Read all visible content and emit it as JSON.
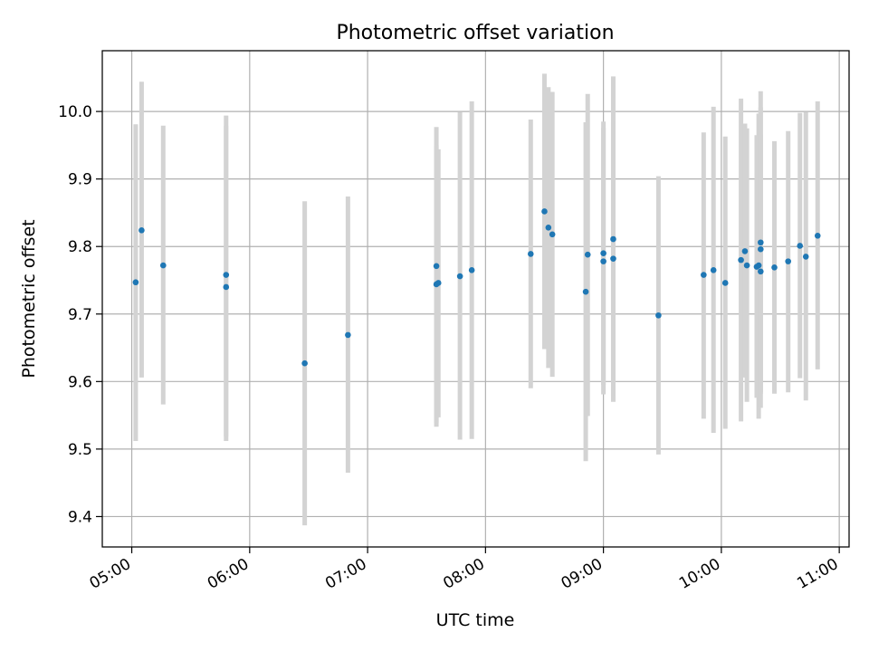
{
  "chart_data": {
    "type": "scatter",
    "title": "Photometric offset variation",
    "xlabel": "UTC time",
    "ylabel": "Photometric offset",
    "x_is_time": true,
    "xlim": [
      "04:45",
      "11:05"
    ],
    "ylim": [
      9.355,
      10.09
    ],
    "x_ticks": [
      "05:00",
      "06:00",
      "07:00",
      "08:00",
      "09:00",
      "10:00",
      "11:00"
    ],
    "y_ticks": [
      "9.4",
      "9.5",
      "9.6",
      "9.7",
      "9.8",
      "9.9",
      "10.0"
    ],
    "grid": true,
    "colors": {
      "point": "#1f77b4",
      "errorbar": "#d3d3d3",
      "grid": "#b0b0b0"
    },
    "points": [
      {
        "t": "05:02",
        "y": 9.747,
        "lo": 9.512,
        "hi": 9.981
      },
      {
        "t": "05:05",
        "y": 9.824,
        "lo": 9.606,
        "hi": 10.044
      },
      {
        "t": "05:16",
        "y": 9.772,
        "lo": 9.566,
        "hi": 9.979
      },
      {
        "t": "05:48",
        "y": 9.758,
        "lo": 9.519,
        "hi": 9.994
      },
      {
        "t": "05:48",
        "y": 9.74,
        "lo": 9.512,
        "hi": 9.979
      },
      {
        "t": "06:28",
        "y": 9.627,
        "lo": 9.387,
        "hi": 9.867
      },
      {
        "t": "06:50",
        "y": 9.669,
        "lo": 9.465,
        "hi": 9.874
      },
      {
        "t": "07:35",
        "y": 9.771,
        "lo": 9.533,
        "hi": 9.977
      },
      {
        "t": "07:35",
        "y": 9.744,
        "lo": 9.539,
        "hi": 9.95
      },
      {
        "t": "07:36",
        "y": 9.746,
        "lo": 9.547,
        "hi": 9.944
      },
      {
        "t": "07:47",
        "y": 9.756,
        "lo": 9.514,
        "hi": 9.999
      },
      {
        "t": "07:53",
        "y": 9.765,
        "lo": 9.515,
        "hi": 10.015
      },
      {
        "t": "08:23",
        "y": 9.789,
        "lo": 9.59,
        "hi": 9.988
      },
      {
        "t": "08:30",
        "y": 9.852,
        "lo": 9.648,
        "hi": 10.056
      },
      {
        "t": "08:32",
        "y": 9.828,
        "lo": 9.62,
        "hi": 10.036
      },
      {
        "t": "08:34",
        "y": 9.818,
        "lo": 9.607,
        "hi": 10.029
      },
      {
        "t": "08:51",
        "y": 9.733,
        "lo": 9.482,
        "hi": 9.984
      },
      {
        "t": "08:52",
        "y": 9.788,
        "lo": 9.549,
        "hi": 10.026
      },
      {
        "t": "09:00",
        "y": 9.79,
        "lo": 9.595,
        "hi": 9.985
      },
      {
        "t": "09:00",
        "y": 9.778,
        "lo": 9.581,
        "hi": 9.976
      },
      {
        "t": "09:05",
        "y": 9.811,
        "lo": 9.57,
        "hi": 10.052
      },
      {
        "t": "09:05",
        "y": 9.782,
        "lo": 9.579,
        "hi": 9.985
      },
      {
        "t": "09:28",
        "y": 9.698,
        "lo": 9.492,
        "hi": 9.904
      },
      {
        "t": "09:51",
        "y": 9.758,
        "lo": 9.545,
        "hi": 9.969
      },
      {
        "t": "09:56",
        "y": 9.765,
        "lo": 9.524,
        "hi": 10.007
      },
      {
        "t": "10:02",
        "y": 9.746,
        "lo": 9.53,
        "hi": 9.963
      },
      {
        "t": "10:10",
        "y": 9.78,
        "lo": 9.541,
        "hi": 10.019
      },
      {
        "t": "10:12",
        "y": 9.793,
        "lo": 9.606,
        "hi": 9.982
      },
      {
        "t": "10:13",
        "y": 9.772,
        "lo": 9.57,
        "hi": 9.975
      },
      {
        "t": "10:18",
        "y": 9.77,
        "lo": 9.576,
        "hi": 9.965
      },
      {
        "t": "10:19",
        "y": 9.772,
        "lo": 9.545,
        "hi": 9.997
      },
      {
        "t": "10:20",
        "y": 9.806,
        "lo": 9.582,
        "hi": 10.03
      },
      {
        "t": "10:20",
        "y": 9.796,
        "lo": 9.584,
        "hi": 10.006
      },
      {
        "t": "10:20",
        "y": 9.763,
        "lo": 9.561,
        "hi": 9.966
      },
      {
        "t": "10:27",
        "y": 9.769,
        "lo": 9.582,
        "hi": 9.956
      },
      {
        "t": "10:34",
        "y": 9.778,
        "lo": 9.584,
        "hi": 9.971
      },
      {
        "t": "10:40",
        "y": 9.801,
        "lo": 9.605,
        "hi": 9.998
      },
      {
        "t": "10:43",
        "y": 9.785,
        "lo": 9.572,
        "hi": 9.999
      },
      {
        "t": "10:49",
        "y": 9.816,
        "lo": 9.618,
        "hi": 10.015
      }
    ]
  }
}
